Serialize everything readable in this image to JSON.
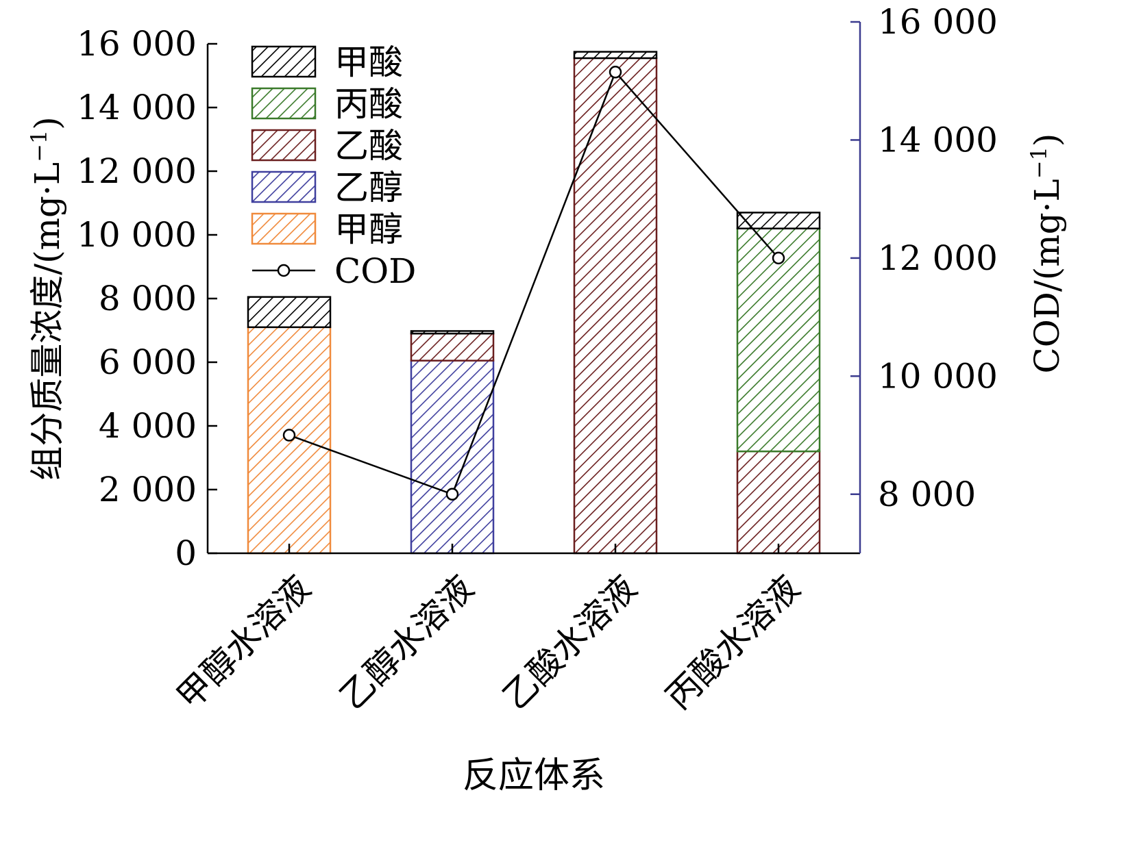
{
  "chart_data": {
    "type": "bar",
    "stacked": true,
    "categories": [
      "甲醇水溶液",
      "乙醇水溶液",
      "乙酸水溶液",
      "丙酸水溶液"
    ],
    "xlabel": "反应体系",
    "ylabel": "组分质量浓度/(mg·L",
    "ylabel_sup": "−1",
    "ylabel_close": ")",
    "y2label": "COD/(mg·L",
    "y2label_sup": "−1",
    "y2label_close": ")",
    "ylim": [
      0,
      16000
    ],
    "yticks": [
      0,
      2000,
      4000,
      6000,
      8000,
      10000,
      12000,
      14000,
      16000
    ],
    "ytick_labels": [
      "0",
      "2 000",
      "4 000",
      "6 000",
      "8 000",
      "10 000",
      "12 000",
      "14 000",
      "16 000"
    ],
    "y2lim": [
      7000,
      16000
    ],
    "y2ticks": [
      8000,
      10000,
      12000,
      14000,
      16000
    ],
    "y2tick_labels": [
      "8 000",
      "10 000",
      "12 000",
      "14 000",
      "16 000"
    ],
    "y2_axis_color": "#3b3b8f",
    "series": [
      {
        "name": "甲醇",
        "color": "#f08a3c",
        "values": [
          7100,
          0,
          0,
          0
        ]
      },
      {
        "name": "乙醇",
        "color": "#3f3f9e",
        "values": [
          0,
          6050,
          0,
          0
        ]
      },
      {
        "name": "乙酸",
        "color": "#6b1f1f",
        "values": [
          0,
          850,
          15550,
          3200
        ]
      },
      {
        "name": "丙酸",
        "color": "#3a7a2a",
        "values": [
          0,
          0,
          0,
          7000
        ]
      },
      {
        "name": "甲酸",
        "color": "#000000",
        "values": [
          950,
          80,
          200,
          500
        ]
      }
    ],
    "legend_order": [
      "甲酸",
      "丙酸",
      "乙酸",
      "乙醇",
      "甲醇",
      "COD"
    ],
    "legend_position": "top-left",
    "line_series": {
      "name": "COD",
      "axis": "right",
      "color": "#000000",
      "values": [
        9000,
        8000,
        15150,
        12000
      ]
    }
  }
}
